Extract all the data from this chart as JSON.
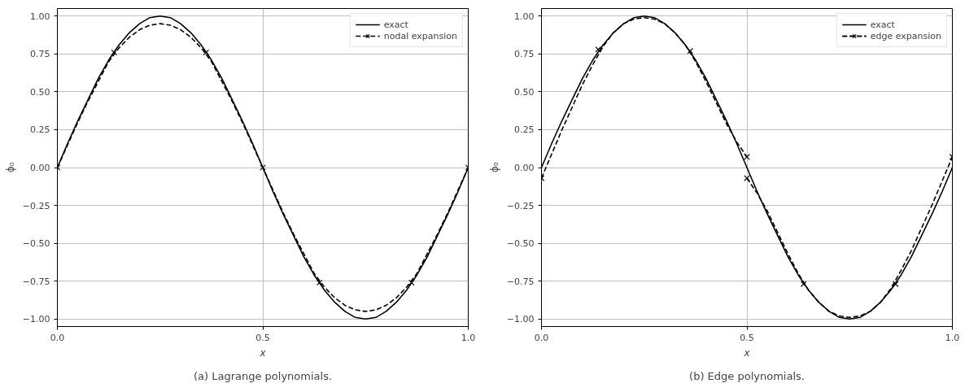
{
  "chart_data": [
    {
      "type": "line",
      "ylabel": "ϕ₀",
      "xlabel": "x",
      "annotations": [
        "(a) Lagrange polynomials."
      ],
      "xlim": [
        0,
        1
      ],
      "ylim": [
        -1.05,
        1.05
      ],
      "xticks": [
        {
          "value": 0,
          "label": "0.0"
        },
        {
          "value": 0.5,
          "label": "0.5"
        },
        {
          "value": 1,
          "label": "1.0"
        }
      ],
      "yticks": [
        {
          "value": -1,
          "label": "−1.00"
        },
        {
          "value": -0.75,
          "label": "−0.75"
        },
        {
          "value": -0.5,
          "label": "−0.50"
        },
        {
          "value": -0.25,
          "label": "−0.25"
        },
        {
          "value": 0,
          "label": "0.00"
        },
        {
          "value": 0.25,
          "label": "0.25"
        },
        {
          "value": 0.5,
          "label": "0.50"
        },
        {
          "value": 0.75,
          "label": "0.75"
        },
        {
          "value": 1,
          "label": "1.00"
        }
      ],
      "grid": true,
      "legend": "top right",
      "series": [
        {
          "name": "exact",
          "color": "#000000",
          "line_style": "solid",
          "marker": "none",
          "x": [
            0,
            0.025,
            0.05,
            0.075,
            0.1,
            0.125,
            0.15,
            0.175,
            0.2,
            0.225,
            0.25,
            0.275,
            0.3,
            0.325,
            0.35,
            0.375,
            0.4,
            0.425,
            0.45,
            0.475,
            0.5,
            0.525,
            0.55,
            0.575,
            0.6,
            0.625,
            0.65,
            0.675,
            0.7,
            0.725,
            0.75,
            0.775,
            0.8,
            0.825,
            0.85,
            0.875,
            0.9,
            0.925,
            0.95,
            0.975,
            1
          ],
          "values": [
            0,
            0.16,
            0.31,
            0.45,
            0.59,
            0.71,
            0.81,
            0.89,
            0.95,
            0.99,
            1,
            0.99,
            0.95,
            0.89,
            0.81,
            0.71,
            0.59,
            0.45,
            0.31,
            0.16,
            0,
            -0.16,
            -0.31,
            -0.45,
            -0.59,
            -0.71,
            -0.81,
            -0.89,
            -0.95,
            -0.99,
            -1,
            -0.99,
            -0.95,
            -0.89,
            -0.81,
            -0.71,
            -0.59,
            -0.45,
            -0.31,
            -0.16,
            0
          ]
        },
        {
          "name": "nodal expansion",
          "color": "#000000",
          "line_style": "dashed",
          "marker": "none",
          "x": [
            0,
            0.025,
            0.05,
            0.075,
            0.1,
            0.125,
            0.15,
            0.175,
            0.2,
            0.225,
            0.25,
            0.275,
            0.3,
            0.325,
            0.35,
            0.375,
            0.4,
            0.425,
            0.45,
            0.475,
            0.5,
            0.525,
            0.55,
            0.575,
            0.6,
            0.625,
            0.65,
            0.675,
            0.7,
            0.725,
            0.75,
            0.775,
            0.8,
            0.825,
            0.85,
            0.875,
            0.9,
            0.925,
            0.95,
            0.975,
            1
          ],
          "values": [
            0,
            0.15,
            0.3,
            0.44,
            0.57,
            0.7,
            0.79,
            0.86,
            0.91,
            0.94,
            0.95,
            0.94,
            0.91,
            0.86,
            0.79,
            0.7,
            0.57,
            0.44,
            0.3,
            0.15,
            0,
            -0.15,
            -0.3,
            -0.44,
            -0.57,
            -0.7,
            -0.79,
            -0.86,
            -0.91,
            -0.94,
            -0.95,
            -0.94,
            -0.91,
            -0.86,
            -0.79,
            -0.7,
            -0.57,
            -0.44,
            -0.3,
            -0.15,
            0
          ]
        },
        {
          "type": "scatter",
          "color": "#000000",
          "marker": "cross",
          "x": [
            0,
            0.138,
            0.362,
            0.5,
            0.638,
            0.862,
            1
          ],
          "values": [
            0,
            0.76,
            0.76,
            0,
            -0.76,
            -0.76,
            0
          ]
        }
      ]
    },
    {
      "type": "line",
      "ylabel": "ϕ₀",
      "xlabel": "x",
      "annotations": [
        "(b) Edge polynomials."
      ],
      "xlim": [
        0,
        1
      ],
      "ylim": [
        -1.05,
        1.05
      ],
      "xticks": [
        {
          "value": 0,
          "label": "0.0"
        },
        {
          "value": 0.5,
          "label": "0.5"
        },
        {
          "value": 1,
          "label": "1.0"
        }
      ],
      "yticks": [
        {
          "value": -1,
          "label": "−1.00"
        },
        {
          "value": -0.75,
          "label": "−0.75"
        },
        {
          "value": -0.5,
          "label": "−0.50"
        },
        {
          "value": -0.25,
          "label": "−0.25"
        },
        {
          "value": 0,
          "label": "0.00"
        },
        {
          "value": 0.25,
          "label": "0.25"
        },
        {
          "value": 0.5,
          "label": "0.50"
        },
        {
          "value": 0.75,
          "label": "0.75"
        },
        {
          "value": 1,
          "label": "1.00"
        }
      ],
      "grid": true,
      "legend": "top right",
      "series": [
        {
          "name": "exact",
          "color": "#000000",
          "line_style": "solid",
          "marker": "none",
          "x": [
            0,
            0.025,
            0.05,
            0.075,
            0.1,
            0.125,
            0.15,
            0.175,
            0.2,
            0.225,
            0.25,
            0.275,
            0.3,
            0.325,
            0.35,
            0.375,
            0.4,
            0.425,
            0.45,
            0.475,
            0.5,
            0.525,
            0.55,
            0.575,
            0.6,
            0.625,
            0.65,
            0.675,
            0.7,
            0.725,
            0.75,
            0.775,
            0.8,
            0.825,
            0.85,
            0.875,
            0.9,
            0.925,
            0.95,
            0.975,
            1
          ],
          "values": [
            0,
            0.16,
            0.31,
            0.45,
            0.59,
            0.71,
            0.81,
            0.89,
            0.95,
            0.99,
            1,
            0.99,
            0.95,
            0.89,
            0.81,
            0.71,
            0.59,
            0.45,
            0.31,
            0.16,
            0,
            -0.16,
            -0.31,
            -0.45,
            -0.59,
            -0.71,
            -0.81,
            -0.89,
            -0.95,
            -0.99,
            -1,
            -0.99,
            -0.95,
            -0.89,
            -0.81,
            -0.71,
            -0.59,
            -0.45,
            -0.31,
            -0.16,
            0
          ]
        },
        {
          "name": "edge expansion",
          "color": "#000000",
          "line_style": "dashed",
          "marker": "none",
          "x": [
            0,
            0.025,
            0.05,
            0.075,
            0.1,
            0.125,
            0.15,
            0.175,
            0.2,
            0.225,
            0.25,
            0.275,
            0.3,
            0.325,
            0.35,
            0.375,
            0.4,
            0.425,
            0.45,
            0.475,
            0.5
          ],
          "values": [
            -0.07,
            0.09,
            0.25,
            0.4,
            0.55,
            0.68,
            0.8,
            0.89,
            0.95,
            0.98,
            0.99,
            0.98,
            0.95,
            0.89,
            0.81,
            0.7,
            0.57,
            0.43,
            0.29,
            0.17,
            0.07
          ]
        },
        {
          "color": "#000000",
          "line_style": "dashed",
          "marker": "none",
          "x": [
            0.5,
            0.525,
            0.55,
            0.575,
            0.6,
            0.625,
            0.65,
            0.675,
            0.7,
            0.725,
            0.75,
            0.775,
            0.8,
            0.825,
            0.85,
            0.875,
            0.9,
            0.925,
            0.95,
            0.975,
            1
          ],
          "values": [
            -0.07,
            -0.17,
            -0.29,
            -0.43,
            -0.57,
            -0.7,
            -0.81,
            -0.89,
            -0.95,
            -0.98,
            -0.99,
            -0.98,
            -0.95,
            -0.89,
            -0.8,
            -0.68,
            -0.55,
            -0.4,
            -0.25,
            -0.09,
            0.07
          ]
        },
        {
          "type": "scatter",
          "color": "#000000",
          "marker": "cross",
          "x": [
            0,
            0.138,
            0.362,
            0.5,
            0.5,
            0.638,
            0.862,
            1
          ],
          "values": [
            -0.07,
            0.78,
            0.77,
            0.07,
            -0.07,
            -0.77,
            -0.77,
            0.07
          ]
        }
      ]
    }
  ]
}
